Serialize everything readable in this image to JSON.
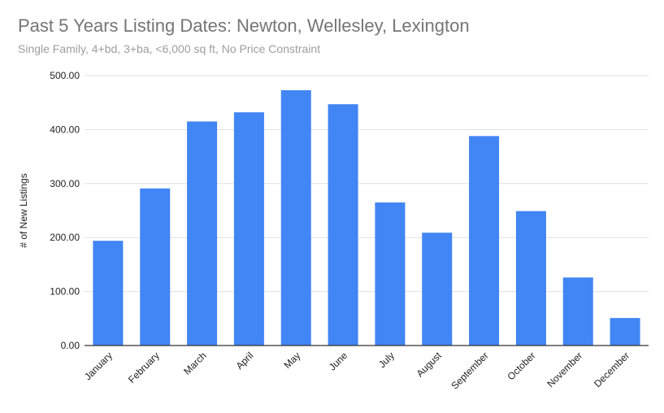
{
  "chart_data": {
    "type": "bar",
    "title": "Past 5 Years Listing Dates: Newton, Wellesley, Lexington",
    "subtitle": "Single Family, 4+bd, 3+ba, <6,000 sq ft, No Price Constraint",
    "xlabel": "",
    "ylabel": "# of New Listings",
    "categories": [
      "January",
      "February",
      "March",
      "April",
      "May",
      "June",
      "July",
      "August",
      "September",
      "October",
      "November",
      "December"
    ],
    "values": [
      194,
      291,
      415,
      432,
      473,
      447,
      265,
      209,
      388,
      249,
      126,
      51
    ],
    "ylim": [
      0,
      500
    ],
    "yticks": [
      "0.00",
      "100.00",
      "200.00",
      "300.00",
      "400.00",
      "500.00"
    ],
    "grid": true,
    "legend": "none",
    "colors": {
      "bar": "#4285f4",
      "grid": "#e0e0e0",
      "axis": "#333333"
    }
  }
}
